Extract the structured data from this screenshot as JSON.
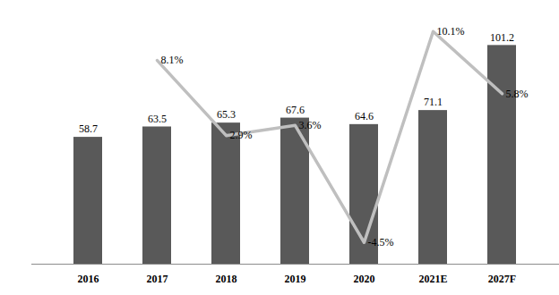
{
  "chart_data": {
    "type": "bar",
    "categories": [
      "2016",
      "2017",
      "2018",
      "2019",
      "2020",
      "2021E",
      "2027F"
    ],
    "series": [
      {
        "type": "bar",
        "color": "#595959",
        "values": [
          58.7,
          63.5,
          65.3,
          67.6,
          64.6,
          71.1,
          101.2
        ]
      },
      {
        "type": "line",
        "axis": "y2",
        "color": "#bfbfbf",
        "values": [
          null,
          8.1,
          2.9,
          3.6,
          -4.5,
          10.1,
          5.8
        ],
        "value_labels": [
          null,
          "8.1%",
          "2.9%",
          "3.6%",
          "-4.5%",
          "10.1%",
          "5.8%"
        ]
      }
    ],
    "ylim": [
      0,
      115
    ],
    "y2lim": [
      -6,
      11.2
    ],
    "tick_labels": "x",
    "data_labels": true
  }
}
